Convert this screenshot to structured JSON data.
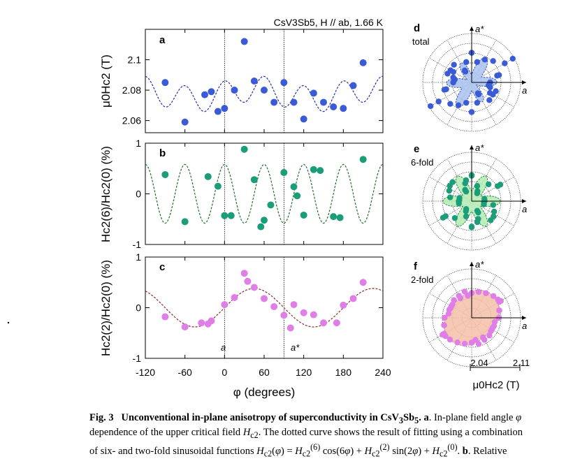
{
  "header": {
    "material": "CsV3Sb5, H // ab, 1.66 K"
  },
  "panels": {
    "a": {
      "letter": "a",
      "ylabel": "μ0Hc2 (T)",
      "yticks": [
        "2.06",
        "2.08",
        "2.1"
      ]
    },
    "b": {
      "letter": "b",
      "ylabel": "Hc2(6)/Hc2(0) (%)",
      "yticks": [
        "-1",
        "0",
        "1"
      ]
    },
    "c": {
      "letter": "c",
      "ylabel": "Hc2(2)/Hc2(0) (%)",
      "yticks": [
        "-1",
        "0",
        "1"
      ],
      "axis_marks": [
        "a",
        "a*"
      ]
    },
    "d": {
      "letter": "d",
      "name": "total"
    },
    "e": {
      "letter": "e",
      "name": "6-fold"
    },
    "f": {
      "letter": "f",
      "name": "2-fold"
    }
  },
  "xaxis": {
    "ticks": [
      "-120",
      "-60",
      "0",
      "60",
      "120",
      "180",
      "240"
    ],
    "label": "φ (degrees)"
  },
  "polar": {
    "axis_a": "a",
    "axis_astar": "a*",
    "scale_ticks": [
      "2.04",
      "2.11"
    ],
    "scale_label": "μ0Hc2 (T)"
  },
  "colors": {
    "total": "#3b5bd6",
    "six": "#1a9d78",
    "two": "#e07ee8",
    "total_fill": "#a9c2ee",
    "six_fill": "#b4ecb4",
    "two_fill": "#f5c0a8"
  },
  "chart_data": [
    {
      "type": "scatter",
      "panel": "a",
      "ylabel": "μ0Hc2 (T)",
      "xlim": [
        -120,
        240
      ],
      "ylim": [
        2.052,
        2.12
      ],
      "points": [
        [
          -90,
          2.085
        ],
        [
          -60,
          2.059
        ],
        [
          -30,
          2.077
        ],
        [
          -20,
          2.079
        ],
        [
          -10,
          2.066
        ],
        [
          0,
          2.068
        ],
        [
          15,
          2.08
        ],
        [
          30,
          2.112
        ],
        [
          45,
          2.086
        ],
        [
          60,
          2.08
        ],
        [
          75,
          2.072
        ],
        [
          90,
          2.085
        ],
        [
          105,
          2.072
        ],
        [
          120,
          2.061
        ],
        [
          135,
          2.078
        ],
        [
          150,
          2.072
        ],
        [
          165,
          2.069
        ],
        [
          180,
          2.068
        ],
        [
          195,
          2.083
        ],
        [
          210,
          2.098
        ]
      ]
    },
    {
      "type": "scatter",
      "panel": "b",
      "ylabel": "Hc2(6)/Hc2(0) (%)",
      "xlim": [
        -120,
        240
      ],
      "ylim": [
        -1,
        1
      ],
      "points": [
        [
          -90,
          0.38
        ],
        [
          -60,
          -0.55
        ],
        [
          -25,
          0.34
        ],
        [
          -10,
          0.15
        ],
        [
          0,
          -0.43
        ],
        [
          10,
          -0.43
        ],
        [
          30,
          0.88
        ],
        [
          45,
          0.28
        ],
        [
          55,
          -0.65
        ],
        [
          60,
          -0.52
        ],
        [
          70,
          -0.22
        ],
        [
          90,
          0.42
        ],
        [
          105,
          0.14
        ],
        [
          110,
          -0.04
        ],
        [
          120,
          -0.42
        ],
        [
          135,
          0.48
        ],
        [
          145,
          0.46
        ],
        [
          165,
          -0.45
        ],
        [
          175,
          -0.47
        ],
        [
          210,
          0.68
        ]
      ]
    },
    {
      "type": "scatter",
      "panel": "c",
      "ylabel": "Hc2(2)/Hc2(0) (%)",
      "xlim": [
        -120,
        240
      ],
      "ylim": [
        -1,
        1
      ],
      "points": [
        [
          -90,
          -0.18
        ],
        [
          -60,
          -0.38
        ],
        [
          -35,
          -0.3
        ],
        [
          -25,
          -0.32
        ],
        [
          -20,
          -0.26
        ],
        [
          0,
          0.06
        ],
        [
          15,
          0.2
        ],
        [
          30,
          0.68
        ],
        [
          35,
          0.52
        ],
        [
          45,
          0.4
        ],
        [
          60,
          0.18
        ],
        [
          75,
          0.02
        ],
        [
          90,
          -0.15
        ],
        [
          100,
          -0.4
        ],
        [
          105,
          0.06
        ],
        [
          120,
          -0.1
        ],
        [
          135,
          -0.14
        ],
        [
          150,
          -0.3
        ],
        [
          170,
          -0.3
        ],
        [
          180,
          0.05
        ],
        [
          195,
          0.18
        ],
        [
          210,
          0.5
        ]
      ]
    }
  ],
  "caption": {
    "lines": [
      "<b>Fig. 3</b>&nbsp;&nbsp;&nbsp;<b>Unconventional in-plane anisotropy of superconductivity in CsV<sub>3</sub>Sb<sub>5</sub>. a</b>. In-plane field angle <i>φ</i>",
      "dependence of the upper critical field <i>H</i><sub>c2</sub>. The dotted curve shows the result of fitting using a combination",
      "of six- and two-fold sinusoidal functions <i>H</i><sub>c2</sub>(<i>φ</i>) = <i>H</i><sub>c2</sub><sup>(6)</sup> cos(6<i>φ</i>) + <i>H</i><sub>c2</sub><sup>(2)</sup> sin(2<i>φ</i>) + <i>H</i><sub>c2</sub><sup>(0)</sup>. <b>b</b>. Relative"
    ]
  }
}
